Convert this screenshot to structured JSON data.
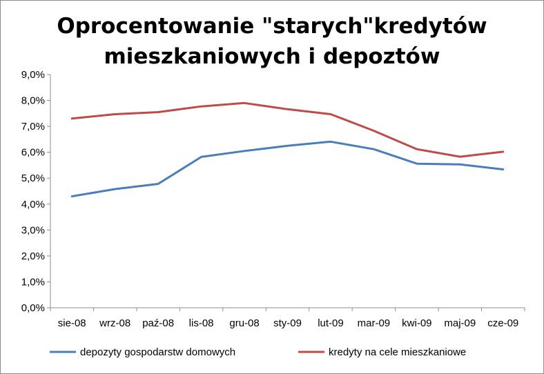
{
  "chart_data": {
    "type": "line",
    "title": "Oprocentowanie  \"starych\"kredytów\nmieszkaniowych i depoztów",
    "xlabel": "",
    "ylabel": "",
    "categories": [
      "sie-08",
      "wrz-08",
      "paź-08",
      "lis-08",
      "gru-08",
      "sty-09",
      "lut-09",
      "mar-09",
      "kwi-09",
      "maj-09",
      "cze-09"
    ],
    "yticks": [
      "0,0%",
      "1,0%",
      "2,0%",
      "3,0%",
      "4,0%",
      "5,0%",
      "6,0%",
      "7,0%",
      "8,0%",
      "9,0%"
    ],
    "ylim": [
      0,
      9
    ],
    "grid": false,
    "legend_position": "bottom",
    "series": [
      {
        "name": "depozyty gospodarstw domowych",
        "color": "#4a7ebb",
        "values": [
          4.3,
          4.58,
          4.78,
          5.82,
          6.05,
          6.25,
          6.41,
          6.12,
          5.56,
          5.53,
          5.34
        ]
      },
      {
        "name": "kredyty na cele mieszkaniowe",
        "color": "#be4b48",
        "values": [
          7.3,
          7.47,
          7.55,
          7.77,
          7.9,
          7.66,
          7.47,
          6.83,
          6.12,
          5.83,
          6.02
        ]
      }
    ]
  }
}
